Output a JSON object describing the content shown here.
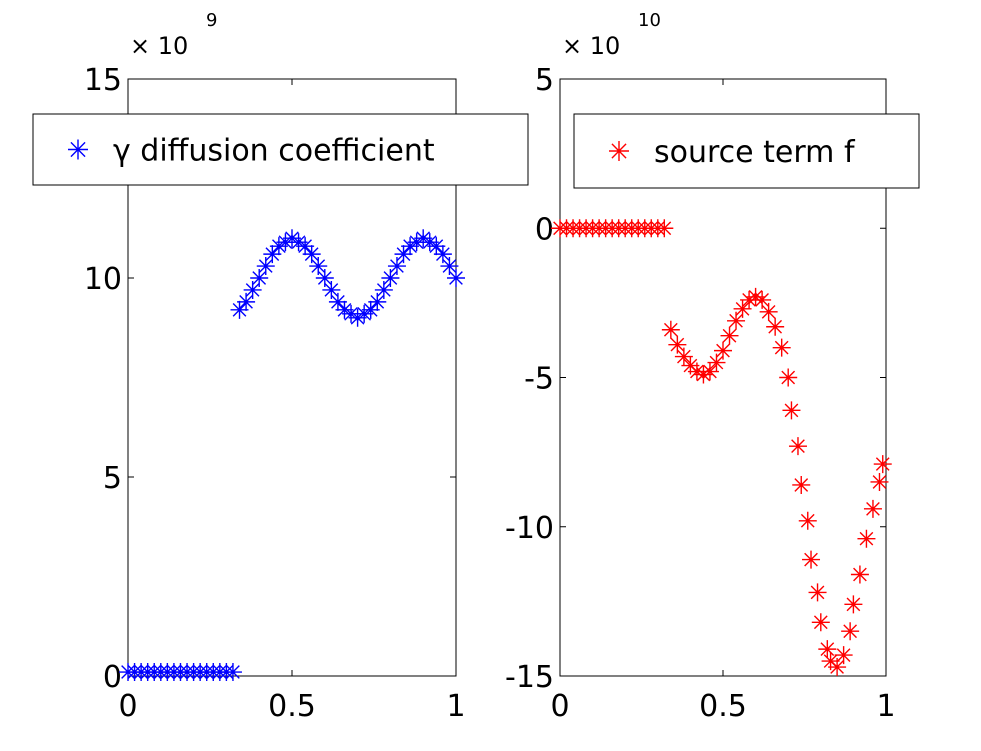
{
  "chart_data": [
    {
      "type": "scatter",
      "y_multiplier": "× 10",
      "y_exponent": "9",
      "xlim": [
        0,
        1
      ],
      "xticks": [
        0,
        0.5,
        1
      ],
      "ylim": [
        0,
        15
      ],
      "yticks": [
        0,
        5,
        10,
        15
      ],
      "marker": "asterisk",
      "legend": "top",
      "series": [
        {
          "name": "γ diffusion coefficient",
          "color": "#0000ff",
          "x": [
            0,
            0.02,
            0.04,
            0.06,
            0.08,
            0.1,
            0.12,
            0.14,
            0.16,
            0.18,
            0.2,
            0.22,
            0.24,
            0.26,
            0.28,
            0.3,
            0.32,
            0.34,
            0.36,
            0.38,
            0.4,
            0.42,
            0.44,
            0.46,
            0.48,
            0.5,
            0.52,
            0.54,
            0.56,
            0.58,
            0.6,
            0.62,
            0.64,
            0.66,
            0.68,
            0.7,
            0.72,
            0.74,
            0.76,
            0.78,
            0.8,
            0.82,
            0.84,
            0.86,
            0.88,
            0.9,
            0.92,
            0.94,
            0.96,
            0.98,
            1
          ],
          "values": [
            0.1,
            0.1,
            0.1,
            0.1,
            0.1,
            0.1,
            0.1,
            0.1,
            0.1,
            0.1,
            0.1,
            0.1,
            0.1,
            0.1,
            0.1,
            0.1,
            0.1,
            9.2,
            9.4,
            9.7,
            10,
            10.3,
            10.6,
            10.8,
            10.9,
            11,
            10.9,
            10.8,
            10.6,
            10.3,
            10,
            9.7,
            9.4,
            9.2,
            9.1,
            9,
            9.1,
            9.2,
            9.4,
            9.7,
            10,
            10.3,
            10.6,
            10.8,
            10.9,
            11,
            10.9,
            10.8,
            10.6,
            10.3,
            10
          ]
        }
      ]
    },
    {
      "type": "scatter",
      "y_multiplier": "× 10",
      "y_exponent": "10",
      "xlim": [
        0,
        1
      ],
      "xticks": [
        0,
        0.5,
        1
      ],
      "ylim": [
        -15,
        5
      ],
      "yticks": [
        -15,
        -10,
        -5,
        0,
        5
      ],
      "marker": "asterisk",
      "legend": "top",
      "series": [
        {
          "name": "source term f",
          "color": "#ff0000",
          "x": [
            0,
            0.02,
            0.04,
            0.06,
            0.08,
            0.1,
            0.12,
            0.14,
            0.16,
            0.18,
            0.2,
            0.22,
            0.24,
            0.26,
            0.28,
            0.3,
            0.32,
            0.34,
            0.36,
            0.38,
            0.4,
            0.42,
            0.44,
            0.46,
            0.48,
            0.5,
            0.52,
            0.54,
            0.56,
            0.58,
            0.6,
            0.62,
            0.64,
            0.66,
            0.68,
            0.7,
            0.71,
            0.73,
            0.74,
            0.76,
            0.77,
            0.79,
            0.8,
            0.82,
            0.83,
            0.85,
            0.87,
            0.89,
            0.9,
            0.92,
            0.94,
            0.96,
            0.98,
            0.99
          ],
          "values": [
            0,
            0,
            0,
            0,
            0,
            0,
            0,
            0,
            0,
            0,
            0,
            0,
            0,
            0,
            0,
            0,
            0,
            -3.4,
            -3.9,
            -4.3,
            -4.6,
            -4.8,
            -4.9,
            -4.8,
            -4.5,
            -4.1,
            -3.6,
            -3.1,
            -2.7,
            -2.4,
            -2.3,
            -2.4,
            -2.8,
            -3.3,
            -4,
            -5,
            -6.1,
            -7.3,
            -8.6,
            -9.8,
            -11.1,
            -12.2,
            -13.2,
            -14.1,
            -14.5,
            -14.7,
            -14.3,
            -13.5,
            -12.6,
            -11.6,
            -10.4,
            -9.4,
            -8.5,
            -7.9
          ]
        }
      ]
    }
  ]
}
